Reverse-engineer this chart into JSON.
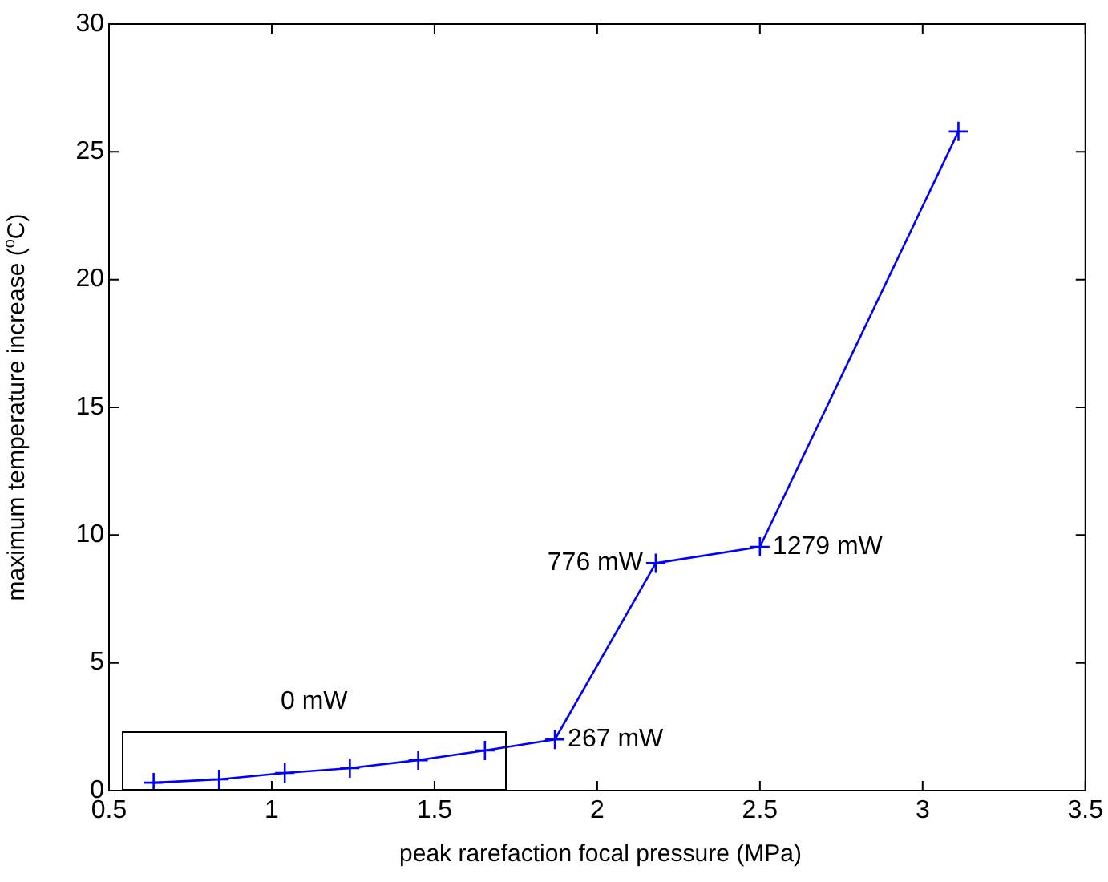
{
  "chart_data": {
    "type": "line",
    "xlabel": "peak rarefaction focal pressure (MPa)",
    "ylabel": "maximum temperature increase ($^{o}$C)",
    "x": [
      0.637,
      0.838,
      1.04,
      1.24,
      1.45,
      1.655,
      1.87,
      2.18,
      2.5,
      3.11
    ],
    "series": [
      {
        "color": "#0000ff",
        "values": [
          0.31,
          0.44,
          0.69,
          0.88,
          1.19,
          1.57,
          2.0,
          8.9,
          9.54,
          25.8
        ]
      }
    ],
    "xlim": [
      0.5,
      3.5
    ],
    "xticks": [
      0.5,
      1,
      1.5,
      2,
      2.5,
      3,
      3.5
    ],
    "ylim": [
      0,
      30
    ],
    "yticks": [
      0,
      5,
      10,
      15,
      20,
      25,
      30
    ],
    "grid": false,
    "legend": false,
    "marker": "cross",
    "line_style": "solid",
    "annotations": [
      "0 mW",
      {
        "text": "267 mW",
        "x": 1.87,
        "y": 2.0
      },
      {
        "text": "776 mW",
        "x": 2.18,
        "y": 8.9
      },
      {
        "text": "1279 mW",
        "x": 2.5,
        "y": 9.54
      }
    ]
  }
}
